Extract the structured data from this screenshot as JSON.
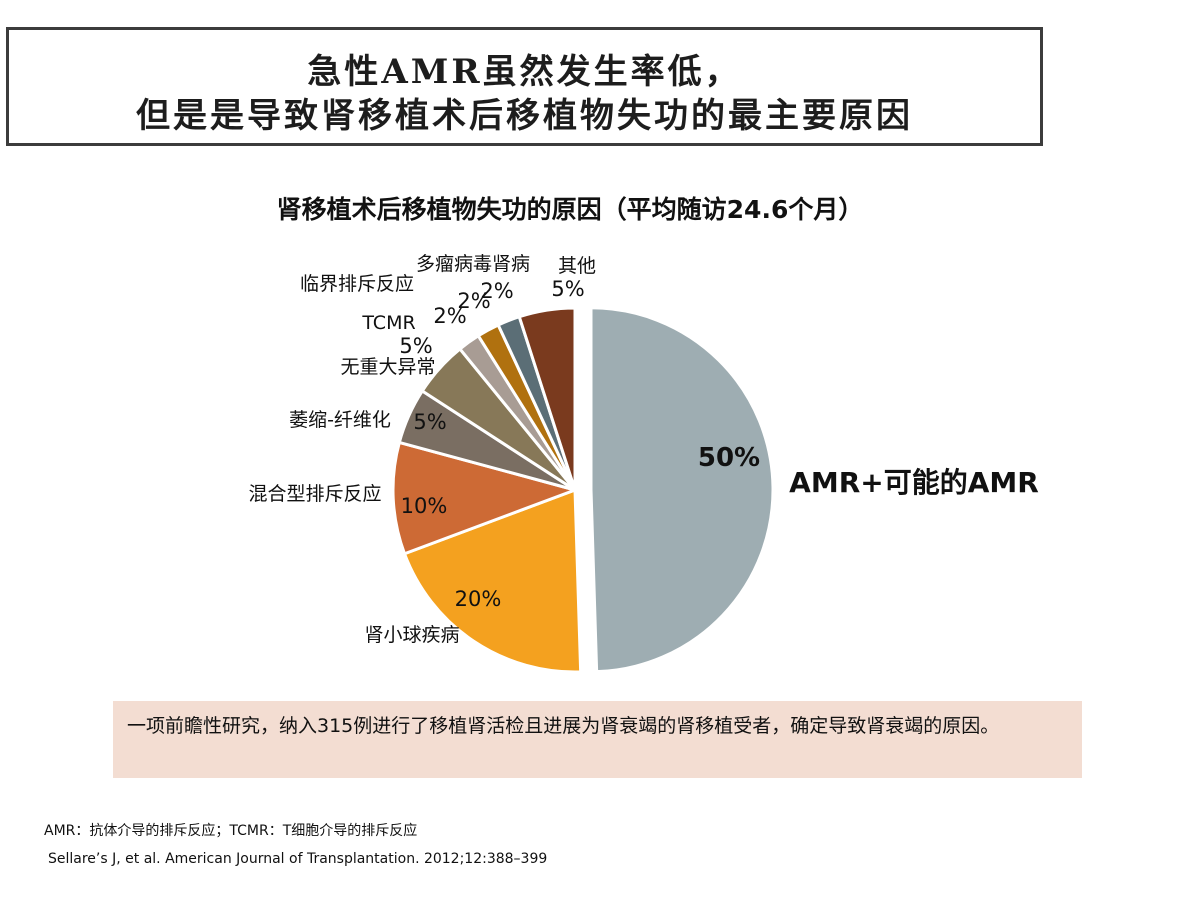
{
  "slide": {
    "title_line1": "急性AMR虽然发生率低，",
    "title_line2": "但是是导致肾移植术后移植物失功的最主要原因",
    "info_text": "一项前瞻性研究，纳入315例进行了移植肾活检且进展为肾衰竭的肾移植受者，确定导致肾衰竭的原因。",
    "footnote_abbrev": "AMR：抗体介导的排斥反应；TCMR：T细胞介导的排斥反应",
    "footnote_reference": "Sellare’s J, et al. American Journal of Transplantation. 2012;12:388–399"
  },
  "chart_data": {
    "type": "pie",
    "title": "肾移植术后移植物失功的原因（平均随访24.6个月）",
    "start": "12 o'clock",
    "direction": "clockwise",
    "exploded_slice": "AMR+可能的AMR",
    "slices": [
      {
        "label": "AMR+可能的AMR",
        "value": 50,
        "value_label": "50%",
        "color": "#9eadb2"
      },
      {
        "label": "肾小球疾病",
        "value": 20,
        "value_label": "20%",
        "color": "#f4a11f"
      },
      {
        "label": "混合型排斥反应",
        "value": 10,
        "value_label": "10%",
        "color": "#cd6a35"
      },
      {
        "label": "萎缩-纤维化",
        "value": 5,
        "value_label": "5%",
        "color": "#7a6e62"
      },
      {
        "label": "无重大异常",
        "value": 5,
        "value_label": "5%",
        "color": "#877858"
      },
      {
        "label": "TCMR",
        "value": 2,
        "value_label": "2%",
        "color": "#a89c94"
      },
      {
        "label": "临界排斥反应",
        "value": 2,
        "value_label": "2%",
        "color": "#b0710f"
      },
      {
        "label": "多瘤病毒肾病",
        "value": 2,
        "value_label": "2%",
        "color": "#5b6e76"
      },
      {
        "label": "其他",
        "value": 5,
        "value_label": "5%",
        "color": "#7a3a1e"
      }
    ]
  }
}
